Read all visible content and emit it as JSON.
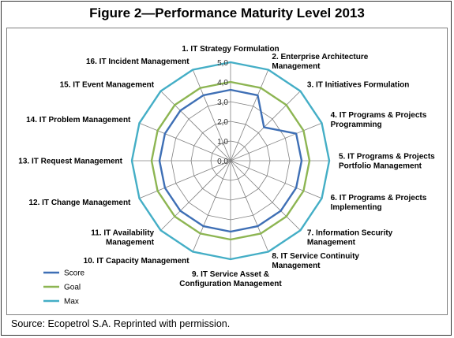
{
  "figure_title": "Figure 2—Performance Maturity Level 2013",
  "source_note": "Source:  Ecopetrol S.A. Reprinted with permission.",
  "colors": {
    "score": "#3e6fb5",
    "goal": "#8db552",
    "max": "#44aec6",
    "grid": "#808080"
  },
  "chart_data": {
    "type": "radar",
    "title": "",
    "rlim": [
      0,
      5
    ],
    "ticks": [
      "0,0",
      "1,0",
      "2,0",
      "3,0",
      "4,0",
      "5,0"
    ],
    "grid": true,
    "legend_position": "bottom-left",
    "categories": [
      "1. IT Strategy Formulation",
      "2. Enterprise Architecture Management",
      "3. IT Initiatives Formulation",
      "4. IT Programs & Projects Programming",
      "5. IT Programs & Projects Portfolio Management",
      "6. IT Programs & Projects Implementing",
      "7. Information Security Management",
      "8. IT Service Continuity Management",
      "9. IT Service Asset & Configuration Management",
      "10. IT Capacity Management",
      "11. IT Availability Management",
      "12. IT Change Management",
      "13. IT Request Management",
      "14. IT Problem Management",
      "15. IT Event Management",
      "16. IT Incident Management"
    ],
    "series": [
      {
        "name": "Score",
        "values": [
          3.6,
          3.6,
          2.4,
          3.6,
          3.6,
          3.6,
          3.6,
          3.6,
          3.6,
          3.6,
          3.6,
          3.6,
          3.6,
          3.6,
          3.6,
          3.6
        ]
      },
      {
        "name": "Goal",
        "values": [
          4.0,
          4.0,
          4.0,
          4.0,
          4.0,
          4.0,
          4.0,
          4.0,
          4.0,
          4.0,
          4.0,
          4.0,
          4.0,
          4.0,
          4.0,
          4.0
        ]
      },
      {
        "name": "Max",
        "values": [
          5.0,
          5.0,
          5.0,
          5.0,
          5.0,
          5.0,
          5.0,
          5.0,
          5.0,
          5.0,
          5.0,
          5.0,
          5.0,
          5.0,
          5.0,
          5.0
        ]
      }
    ]
  }
}
